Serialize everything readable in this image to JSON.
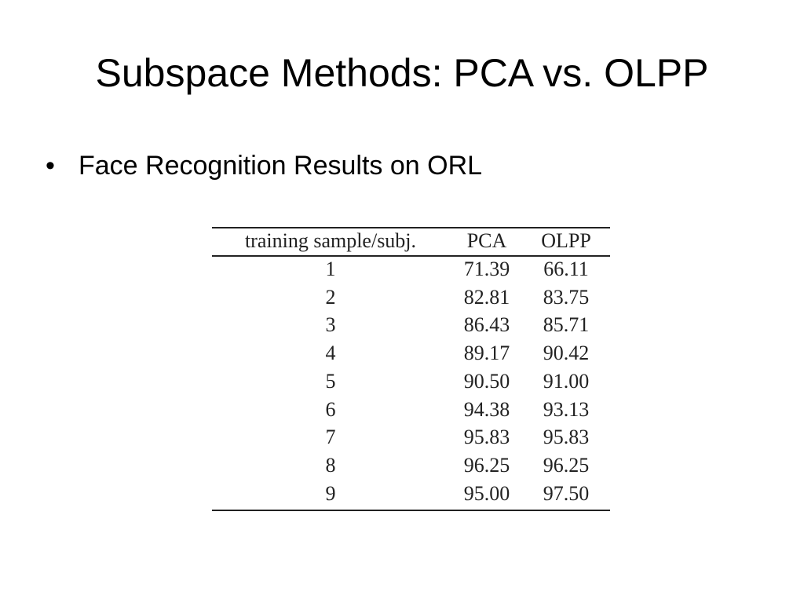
{
  "header": {
    "title": "Subspace Methods: PCA vs. OLPP"
  },
  "bullets": [
    "Face Recognition Results on ORL"
  ],
  "table": {
    "columns": [
      "training sample/subj.",
      "PCA",
      "OLPP"
    ],
    "rows": [
      [
        "1",
        "71.39",
        "66.11"
      ],
      [
        "2",
        "82.81",
        "83.75"
      ],
      [
        "3",
        "86.43",
        "85.71"
      ],
      [
        "4",
        "89.17",
        "90.42"
      ],
      [
        "5",
        "90.50",
        "91.00"
      ],
      [
        "6",
        "94.38",
        "93.13"
      ],
      [
        "7",
        "95.83",
        "95.83"
      ],
      [
        "8",
        "96.25",
        "96.25"
      ],
      [
        "9",
        "95.00",
        "97.50"
      ]
    ]
  }
}
